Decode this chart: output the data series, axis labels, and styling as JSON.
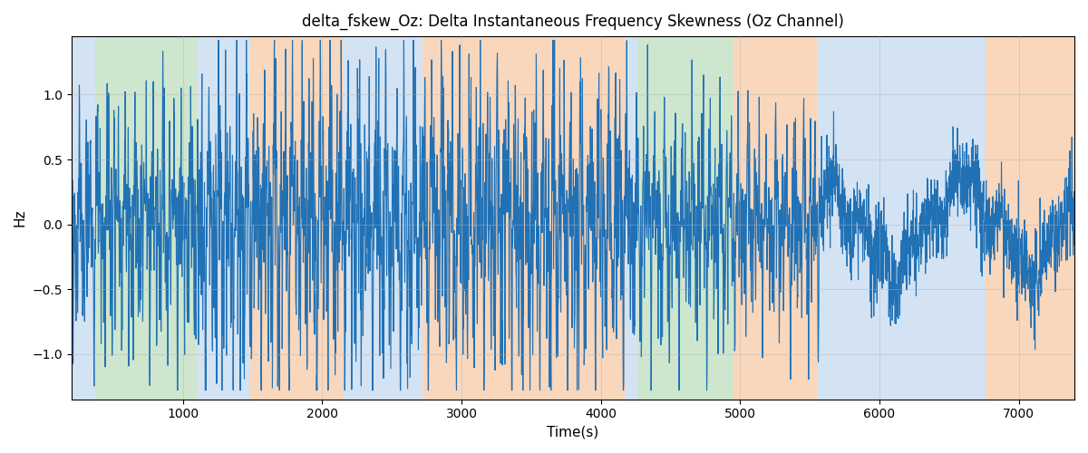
{
  "title": "delta_fskew_Oz: Delta Instantaneous Frequency Skewness (Oz Channel)",
  "xlabel": "Time(s)",
  "ylabel": "Hz",
  "xlim": [
    200,
    7400
  ],
  "ylim": [
    -1.35,
    1.45
  ],
  "yticks": [
    -1.0,
    -0.5,
    0.0,
    0.5,
    1.0
  ],
  "xticks": [
    1000,
    2000,
    3000,
    4000,
    5000,
    6000,
    7000
  ],
  "line_color": "#2171b5",
  "line_width": 0.8,
  "grid_color": "#b0b0b0",
  "grid_alpha": 0.6,
  "background": "#ffffff",
  "regions": [
    {
      "xstart": 200,
      "xend": 370,
      "color": "#a8c8e8",
      "alpha": 0.5
    },
    {
      "xstart": 370,
      "xend": 1100,
      "color": "#90c890",
      "alpha": 0.45
    },
    {
      "xstart": 1100,
      "xend": 1480,
      "color": "#a8c8e8",
      "alpha": 0.5
    },
    {
      "xstart": 1480,
      "xend": 2150,
      "color": "#f4b07a",
      "alpha": 0.5
    },
    {
      "xstart": 2150,
      "xend": 2720,
      "color": "#a8c8e8",
      "alpha": 0.5
    },
    {
      "xstart": 2720,
      "xend": 4180,
      "color": "#f4b07a",
      "alpha": 0.5
    },
    {
      "xstart": 4180,
      "xend": 4260,
      "color": "#a8c8e8",
      "alpha": 0.5
    },
    {
      "xstart": 4260,
      "xend": 4950,
      "color": "#90c890",
      "alpha": 0.45
    },
    {
      "xstart": 4950,
      "xend": 5560,
      "color": "#f4b07a",
      "alpha": 0.5
    },
    {
      "xstart": 5560,
      "xend": 6460,
      "color": "#a8c8e8",
      "alpha": 0.5
    },
    {
      "xstart": 6460,
      "xend": 6760,
      "color": "#a8c8e8",
      "alpha": 0.5
    },
    {
      "xstart": 6760,
      "xend": 7400,
      "color": "#f4b07a",
      "alpha": 0.5
    }
  ],
  "seed": 42,
  "n_points": 4000
}
